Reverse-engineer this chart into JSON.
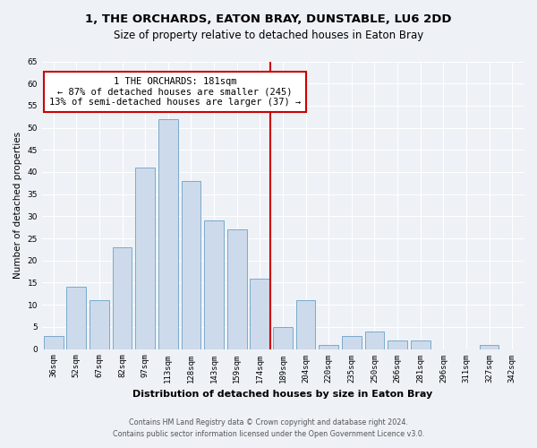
{
  "title": "1, THE ORCHARDS, EATON BRAY, DUNSTABLE, LU6 2DD",
  "subtitle": "Size of property relative to detached houses in Eaton Bray",
  "xlabel": "Distribution of detached houses by size in Eaton Bray",
  "ylabel": "Number of detached properties",
  "bar_labels": [
    "36sqm",
    "52sqm",
    "67sqm",
    "82sqm",
    "97sqm",
    "113sqm",
    "128sqm",
    "143sqm",
    "159sqm",
    "174sqm",
    "189sqm",
    "204sqm",
    "220sqm",
    "235sqm",
    "250sqm",
    "266sqm",
    "281sqm",
    "296sqm",
    "311sqm",
    "327sqm",
    "342sqm"
  ],
  "bar_values": [
    3,
    14,
    11,
    23,
    41,
    52,
    38,
    29,
    27,
    16,
    5,
    11,
    1,
    3,
    4,
    2,
    2,
    0,
    0,
    1,
    0
  ],
  "bar_color": "#cddaeb",
  "bar_edge_color": "#7aaaca",
  "vline_color": "#cc0000",
  "ylim": [
    0,
    65
  ],
  "yticks": [
    0,
    5,
    10,
    15,
    20,
    25,
    30,
    35,
    40,
    45,
    50,
    55,
    60,
    65
  ],
  "annotation_title": "1 THE ORCHARDS: 181sqm",
  "annotation_line1": "← 87% of detached houses are smaller (245)",
  "annotation_line2": "13% of semi-detached houses are larger (37) →",
  "annotation_box_color": "#cc0000",
  "footnote1": "Contains HM Land Registry data © Crown copyright and database right 2024.",
  "footnote2": "Contains public sector information licensed under the Open Government Licence v3.0.",
  "background_color": "#eef2f7",
  "grid_color": "#ffffff",
  "title_fontsize": 9.5,
  "subtitle_fontsize": 8.5,
  "xlabel_fontsize": 8,
  "ylabel_fontsize": 7.5,
  "tick_fontsize": 6.5,
  "annotation_fontsize": 7.5
}
